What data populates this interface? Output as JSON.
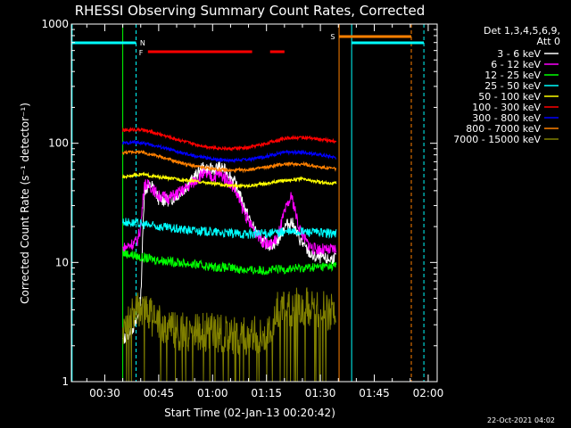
{
  "chart_data": {
    "type": "line",
    "title": "RHESSI Observing Summary Count Rates, Corrected",
    "xlabel": "Start Time (02-Jan-13 00:20:42)",
    "ylabel": "Corrected Count Rate (s⁻¹ detector⁻¹)",
    "yscale": "log",
    "xlim_min": [
      20.7,
      122.5
    ],
    "ylim": [
      1,
      1000
    ],
    "x_ticks": [
      "00:30",
      "00:45",
      "01:00",
      "01:15",
      "01:30",
      "01:45",
      "02:00"
    ],
    "x_tick_min": [
      30,
      45,
      60,
      75,
      90,
      105,
      120
    ],
    "y_ticks": [
      "1",
      "10",
      "100",
      "1000"
    ],
    "y_tick_vals": [
      1,
      10,
      100,
      1000
    ],
    "legend_title": [
      "Det 1,3,4,5,6,9,",
      "Att 0"
    ],
    "legend_position": "right",
    "footer_date": "22-Oct-2021 04:02",
    "data_start_min": 35,
    "data_end_min": 94.5,
    "series": [
      {
        "name": "3 - 6 keV",
        "color": "#ffffff",
        "x": [
          35,
          37,
          39,
          40,
          41,
          43,
          45,
          48,
          51,
          54,
          57,
          60,
          62,
          64,
          66,
          68,
          70,
          72,
          74,
          76,
          78,
          80,
          82,
          84,
          86,
          88,
          90,
          92,
          94.5
        ],
        "y": [
          2.2,
          2.6,
          3.2,
          5,
          40,
          45,
          34,
          33,
          38,
          48,
          62,
          60,
          63,
          58,
          48,
          34,
          24,
          18,
          15,
          14,
          15,
          20,
          22,
          16,
          13,
          11,
          11,
          10.5,
          11
        ]
      },
      {
        "name": "6 - 12 keV",
        "color": "#ff00ff",
        "x": [
          35,
          37,
          39,
          40,
          41,
          43,
          45,
          48,
          51,
          54,
          57,
          60,
          62,
          64,
          66,
          68,
          70,
          72,
          74,
          76,
          78,
          80,
          82,
          84,
          86,
          88,
          90,
          92,
          94.5
        ],
        "y": [
          13,
          14,
          15,
          20,
          46,
          43,
          36,
          35,
          39,
          45,
          55,
          52,
          55,
          50,
          42,
          30,
          22,
          18,
          15,
          14,
          16,
          26,
          36,
          20,
          15,
          13,
          13,
          12.5,
          13
        ]
      },
      {
        "name": "12 - 25 keV",
        "color": "#00ff00",
        "x": [
          35,
          38,
          40,
          45,
          50,
          55,
          60,
          65,
          70,
          75,
          80,
          85,
          90,
          94.5
        ],
        "y": [
          12,
          11.5,
          11,
          10.5,
          10,
          9.6,
          9.2,
          9,
          8.6,
          8.6,
          8.8,
          9,
          9.2,
          9.4
        ]
      },
      {
        "name": "25 - 50 keV",
        "color": "#00ffff",
        "x": [
          35,
          38,
          40,
          45,
          50,
          55,
          60,
          65,
          70,
          75,
          80,
          85,
          90,
          94.5
        ],
        "y": [
          22,
          21.5,
          21,
          20,
          19,
          18.5,
          18,
          17.5,
          17.3,
          17.5,
          18,
          18.2,
          17.8,
          17.5
        ]
      },
      {
        "name": "50 - 100 keV",
        "color": "#ffff00",
        "x": [
          35,
          38,
          40,
          45,
          50,
          55,
          60,
          65,
          70,
          75,
          80,
          85,
          90,
          94.5
        ],
        "y": [
          52,
          54,
          55,
          52,
          50,
          48,
          46,
          44,
          44,
          46,
          49,
          50,
          47,
          46
        ]
      },
      {
        "name": "100 - 300 keV",
        "color": "#ff0000",
        "x": [
          35,
          38,
          40,
          45,
          50,
          55,
          60,
          65,
          70,
          75,
          80,
          85,
          90,
          94.5
        ],
        "y": [
          128,
          130,
          130,
          120,
          108,
          98,
          92,
          90,
          92,
          100,
          110,
          112,
          108,
          103
        ]
      },
      {
        "name": "300 - 800 keV",
        "color": "#0000ff",
        "x": [
          35,
          38,
          40,
          45,
          50,
          55,
          60,
          65,
          70,
          75,
          80,
          85,
          90,
          94.5
        ],
        "y": [
          100,
          102,
          101,
          94,
          85,
          78,
          74,
          72,
          73,
          78,
          84,
          84,
          80,
          76
        ]
      },
      {
        "name": "800 - 7000 keV",
        "color": "#ff8000",
        "x": [
          35,
          38,
          40,
          45,
          50,
          55,
          60,
          65,
          70,
          75,
          80,
          85,
          90,
          94.5
        ],
        "y": [
          83,
          85,
          84,
          78,
          70,
          64,
          61,
          59,
          60,
          63,
          67,
          67,
          63,
          61
        ]
      },
      {
        "name": "7000 - 15000 keV",
        "color": "#808000",
        "x": [
          35,
          37,
          39,
          40,
          43,
          46,
          50,
          55,
          60,
          65,
          70,
          73,
          76,
          78,
          82,
          86,
          90,
          94.5
        ],
        "y": [
          2.5,
          3.5,
          4,
          4,
          3.5,
          3,
          2.6,
          2.6,
          2.6,
          2.5,
          2.4,
          2.5,
          2.6,
          4,
          4.2,
          4.3,
          4,
          3.8
        ]
      }
    ],
    "annotations": {
      "flags": [
        {
          "label": "N",
          "color": "#00ffff"
        },
        {
          "label": "F",
          "color": "#ff0000"
        },
        {
          "label": "S",
          "color": "#ff8000"
        }
      ]
    }
  }
}
